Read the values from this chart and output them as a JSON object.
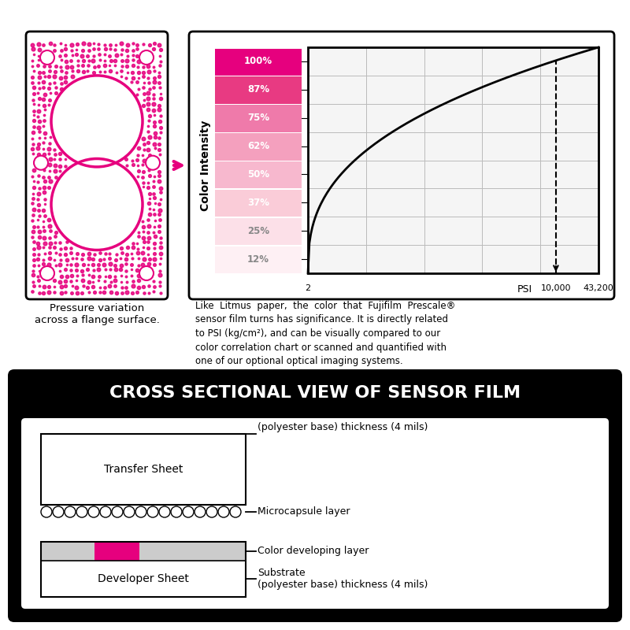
{
  "bg_color": "#ffffff",
  "pink_dark": "#e6007e",
  "pink_medium": "#f06090",
  "pink_light": "#f8b8cc",
  "bar_labels": [
    "100%",
    "87%",
    "75%",
    "62%",
    "50%",
    "37%",
    "25%",
    "12%"
  ],
  "bar_colors": [
    "#e6007e",
    "#e83a82",
    "#ef7aaa",
    "#f4a0be",
    "#f7b8ce",
    "#faccd8",
    "#fce0e8",
    "#fef0f4"
  ],
  "psi_labels": [
    "2",
    "10,000",
    "43,200"
  ],
  "description_text": "Like  Litmus  paper,  the  color  that  Fujifilm  Prescale®\nsensor film turns has significance. It is directly related\nto PSI (kg/cm²), and can be visually compared to our\ncolor correlation chart or scanned and quantified with\none of our optional optical imaging systems.",
  "caption_text": "Pressure variation\nacross a flange surface.",
  "cross_section_title": "CROSS SECTIONAL VIEW OF SENSOR FILM",
  "transfer_sheet_label": "Transfer Sheet",
  "developer_sheet_label": "Developer Sheet",
  "substrate_label_top": "Substrate\n(polyester base) thickness (4 mils)",
  "microcapsule_label": "Microcapsule layer",
  "color_developing_label": "Color developing layer",
  "substrate_label_bottom": "Substrate\n(polyester base) thickness (4 mils)"
}
